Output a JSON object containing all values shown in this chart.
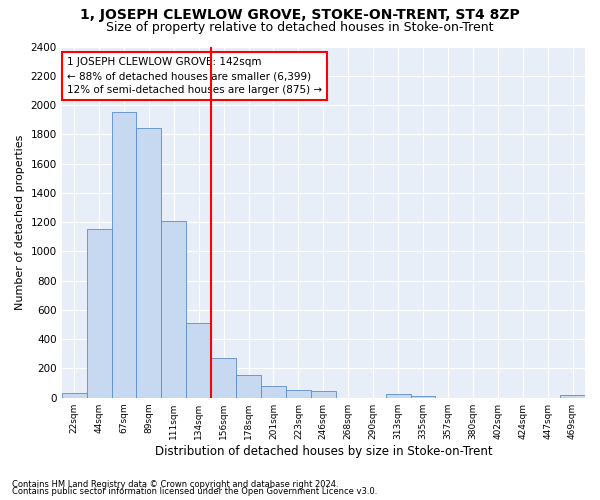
{
  "title": "1, JOSEPH CLEWLOW GROVE, STOKE-ON-TRENT, ST4 8ZP",
  "subtitle": "Size of property relative to detached houses in Stoke-on-Trent",
  "xlabel": "Distribution of detached houses by size in Stoke-on-Trent",
  "ylabel": "Number of detached properties",
  "footnote1": "Contains HM Land Registry data © Crown copyright and database right 2024.",
  "footnote2": "Contains public sector information licensed under the Open Government Licence v3.0.",
  "bin_labels": [
    "22sqm",
    "44sqm",
    "67sqm",
    "89sqm",
    "111sqm",
    "134sqm",
    "156sqm",
    "178sqm",
    "201sqm",
    "223sqm",
    "246sqm",
    "268sqm",
    "290sqm",
    "313sqm",
    "335sqm",
    "357sqm",
    "380sqm",
    "402sqm",
    "424sqm",
    "447sqm",
    "469sqm"
  ],
  "bar_values": [
    30,
    1150,
    1950,
    1840,
    1210,
    510,
    270,
    155,
    80,
    50,
    45,
    0,
    0,
    25,
    15,
    0,
    0,
    0,
    0,
    0,
    20
  ],
  "bar_color": "#c6d9f0",
  "bar_edge_color": "#5b8cc8",
  "vline_x": 5.5,
  "vline_color": "red",
  "annotation_text": "1 JOSEPH CLEWLOW GROVE: 142sqm\n← 88% of detached houses are smaller (6,399)\n12% of semi-detached houses are larger (875) →",
  "annotation_box_color": "white",
  "annotation_box_edge": "red",
  "ylim": [
    0,
    2400
  ],
  "yticks": [
    0,
    200,
    400,
    600,
    800,
    1000,
    1200,
    1400,
    1600,
    1800,
    2000,
    2200,
    2400
  ],
  "background_color": "#ffffff",
  "plot_background": "#e8eef7",
  "title_fontsize": 10,
  "subtitle_fontsize": 9
}
